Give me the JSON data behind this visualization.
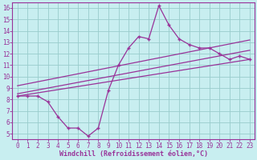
{
  "xlabel": "Windchill (Refroidissement éolien,°C)",
  "bg_color": "#c8eef0",
  "line_color": "#993399",
  "grid_color": "#99cccc",
  "spine_color": "#993399",
  "xlim": [
    -0.5,
    23.5
  ],
  "ylim": [
    4.5,
    16.5
  ],
  "xticks": [
    0,
    1,
    2,
    3,
    4,
    5,
    6,
    7,
    8,
    9,
    10,
    11,
    12,
    13,
    14,
    15,
    16,
    17,
    18,
    19,
    20,
    21,
    22,
    23
  ],
  "yticks": [
    5,
    6,
    7,
    8,
    9,
    10,
    11,
    12,
    13,
    14,
    15,
    16
  ],
  "main_x": [
    0,
    1,
    2,
    3,
    4,
    5,
    6,
    7,
    8,
    9,
    10,
    11,
    12,
    13,
    14,
    15,
    16,
    17,
    18,
    19,
    20,
    21,
    22,
    23
  ],
  "main_y": [
    8.3,
    8.3,
    8.3,
    7.8,
    6.5,
    5.5,
    5.5,
    4.8,
    5.5,
    8.8,
    11.0,
    12.5,
    13.5,
    13.3,
    16.2,
    14.5,
    13.3,
    12.8,
    12.5,
    12.5,
    12.0,
    11.5,
    11.8,
    11.5
  ],
  "line1_x": [
    0,
    23
  ],
  "line1_y": [
    8.3,
    11.5
  ],
  "line2_x": [
    0,
    23
  ],
  "line2_y": [
    8.5,
    12.3
  ],
  "line3_x": [
    0,
    23
  ],
  "line3_y": [
    9.2,
    13.2
  ],
  "tick_fontsize": 5.5,
  "xlabel_fontsize": 6.0
}
